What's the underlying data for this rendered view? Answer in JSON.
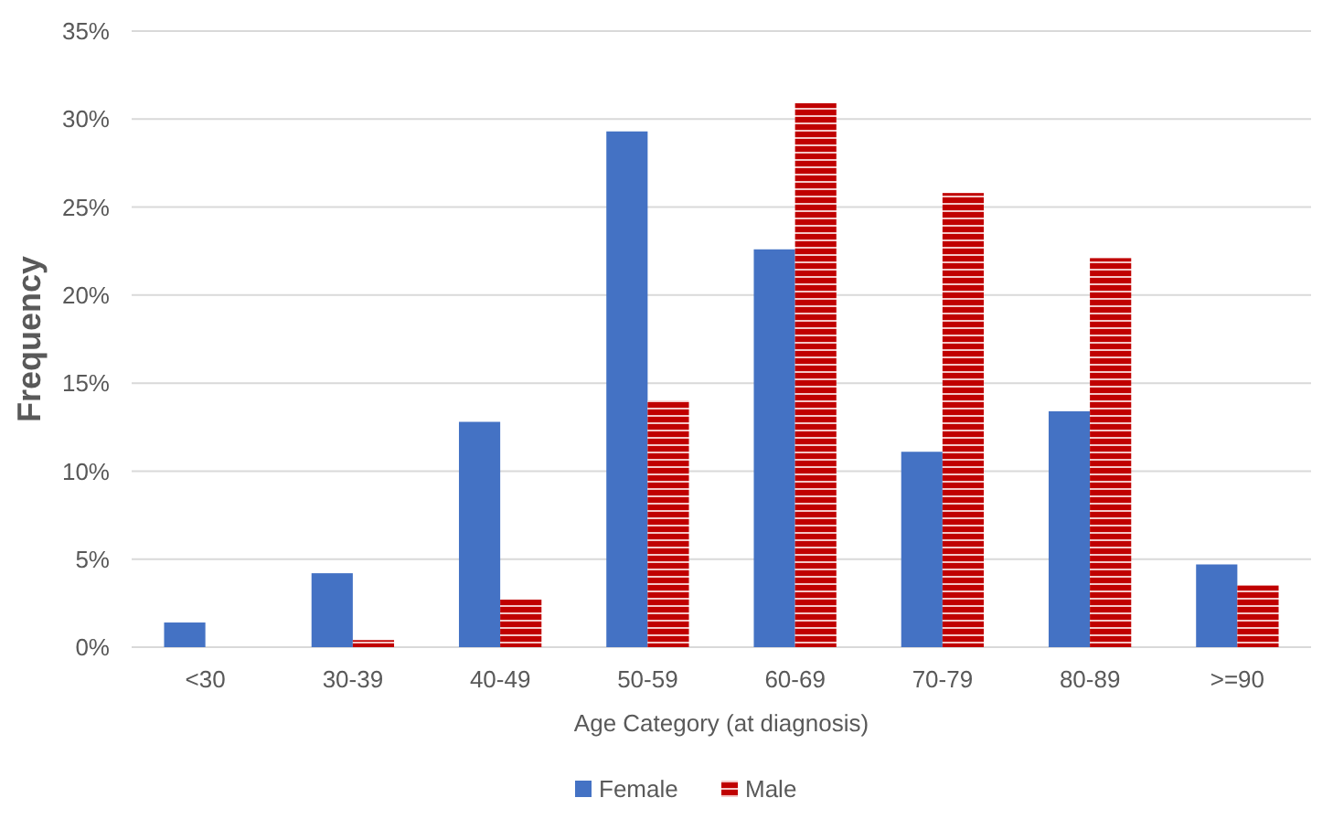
{
  "chart_data": {
    "type": "bar",
    "xlabel": "Age Category (at diagnosis)",
    "ylabel": "Frequency",
    "categories": [
      "<30",
      "30-39",
      "40-49",
      "50-59",
      "60-69",
      "70-79",
      "80-89",
      ">=90"
    ],
    "series": [
      {
        "name": "Female",
        "color": "#4472c4",
        "values": [
          1.4,
          4.2,
          12.8,
          29.3,
          22.6,
          11.1,
          13.4,
          4.7
        ]
      },
      {
        "name": "Male",
        "color": "#c00000",
        "values": [
          0,
          0.4,
          2.7,
          14.0,
          30.9,
          25.8,
          22.1,
          3.5
        ]
      }
    ],
    "ylim": [
      0,
      35
    ],
    "yticks": [
      {
        "value": 0,
        "label": "0%"
      },
      {
        "value": 5,
        "label": "5%"
      },
      {
        "value": 10,
        "label": "10%"
      },
      {
        "value": 15,
        "label": "15%"
      },
      {
        "value": 20,
        "label": "20%"
      },
      {
        "value": 25,
        "label": "25%"
      },
      {
        "value": 30,
        "label": "30%"
      },
      {
        "value": 35,
        "label": "35%"
      }
    ],
    "grid": "y",
    "legend": "bottom"
  }
}
